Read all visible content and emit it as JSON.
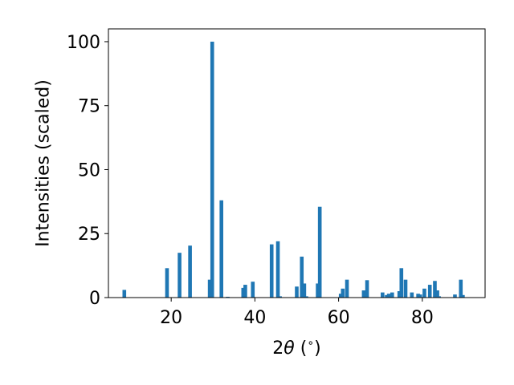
{
  "chart_data": {
    "type": "bar",
    "xlabel": "2θ (°)",
    "xlabel_parts": {
      "prefix": "2",
      "theta": "θ",
      "suffix": " (",
      "deg": "∘",
      "close": ")"
    },
    "ylabel": "Intensities (scaled)",
    "xlim": [
      5,
      95
    ],
    "ylim": [
      0,
      105
    ],
    "xticks": [
      20,
      40,
      60,
      80
    ],
    "xtick_labels": [
      "20",
      "40",
      "60",
      "80"
    ],
    "yticks": [
      0,
      25,
      50,
      75,
      100
    ],
    "ytick_labels": [
      "0",
      "25",
      "50",
      "75",
      "100"
    ],
    "bar_color": "#1f77b4",
    "grid": false,
    "x": [
      8.8,
      19.0,
      22.0,
      24.5,
      29.2,
      29.8,
      32.0,
      33.5,
      37.2,
      37.7,
      39.5,
      44.0,
      45.5,
      46.0,
      50.0,
      51.2,
      51.8,
      52.3,
      55.0,
      55.5,
      60.5,
      61.0,
      62.0,
      66.0,
      66.8,
      70.5,
      71.5,
      72.0,
      72.8,
      74.5,
      75.0,
      76.0,
      77.5,
      79.0,
      79.5,
      80.5,
      81.8,
      83.0,
      83.6,
      84.0,
      87.8,
      89.2,
      89.7
    ],
    "values": [
      3.0,
      11.5,
      17.5,
      20.3,
      7.0,
      100.0,
      38.0,
      0.3,
      3.8,
      5.0,
      6.2,
      20.8,
      22.0,
      0.5,
      4.3,
      16.0,
      5.5,
      0.5,
      5.5,
      35.5,
      1.5,
      3.5,
      7.0,
      2.8,
      6.8,
      2.0,
      1.0,
      1.5,
      2.0,
      2.5,
      11.5,
      7.0,
      2.0,
      1.5,
      1.2,
      3.5,
      5.0,
      6.5,
      2.8,
      0.5,
      1.2,
      7.0,
      1.0
    ]
  }
}
